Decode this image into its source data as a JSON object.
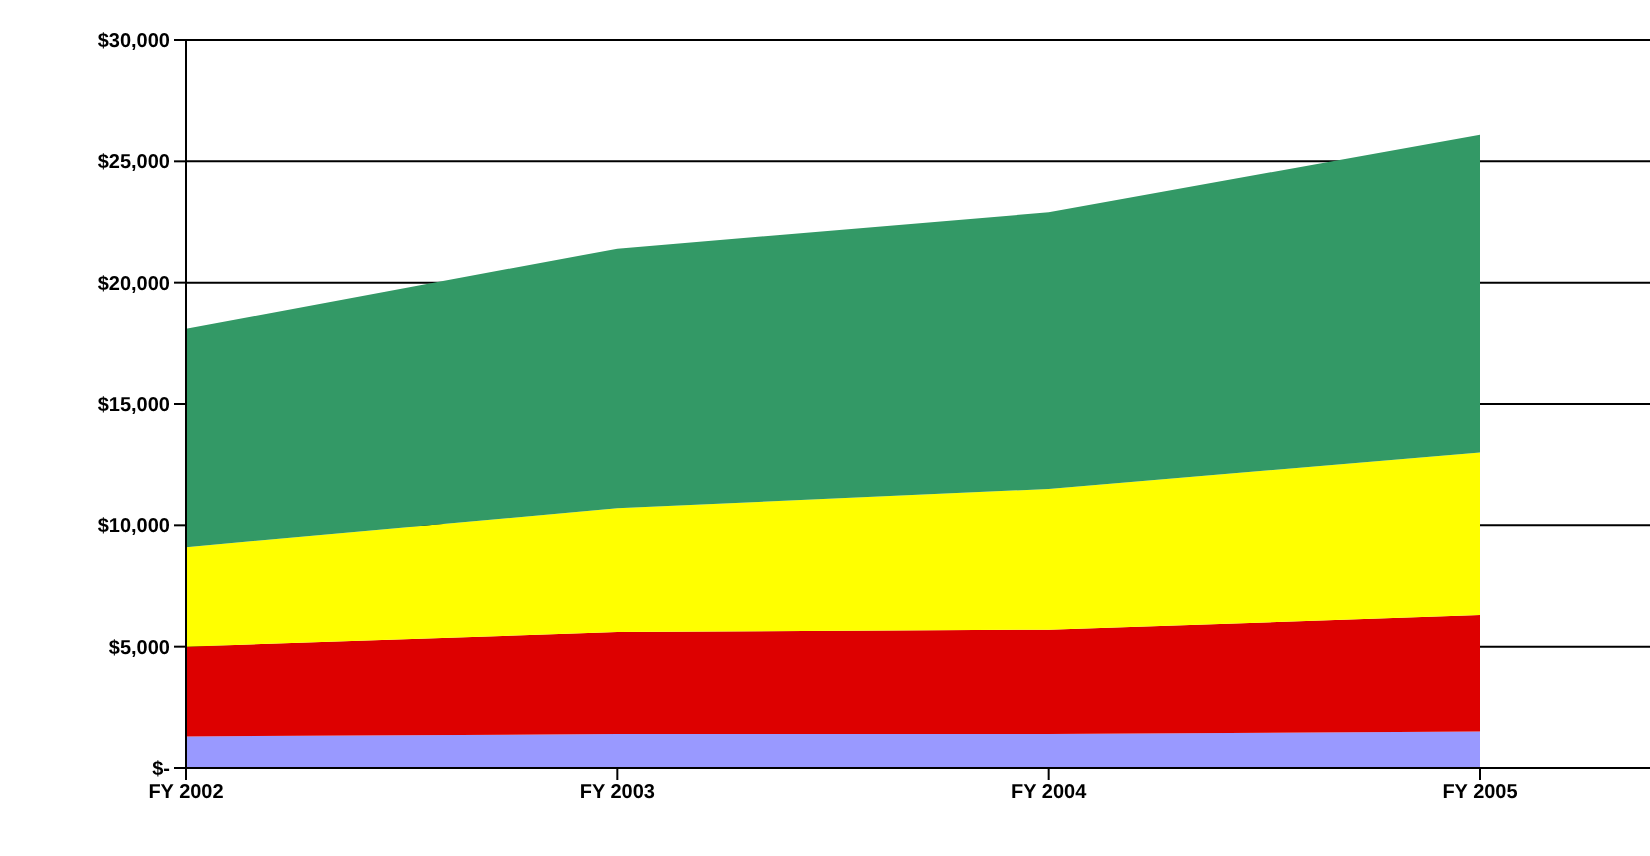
{
  "chart_data": {
    "type": "area",
    "stacked": true,
    "categories": [
      "FY 2002",
      "FY 2003",
      "FY 2004",
      "FY 2005"
    ],
    "series": [
      {
        "color": "#9999ff",
        "values": [
          1300,
          1400,
          1400,
          1500
        ]
      },
      {
        "color": "#dd0000",
        "values": [
          3700,
          4200,
          4300,
          4800
        ]
      },
      {
        "color": "#ffff00",
        "values": [
          4100,
          5100,
          5800,
          6700
        ]
      },
      {
        "color": "#339966",
        "values": [
          9000,
          10700,
          11400,
          13100
        ]
      }
    ],
    "ylim": [
      0,
      30000
    ],
    "yticks": [
      {
        "value": 0,
        "label": "$-"
      },
      {
        "value": 5000,
        "label": "$5,000"
      },
      {
        "value": 10000,
        "label": "$10,000"
      },
      {
        "value": 15000,
        "label": "$15,000"
      },
      {
        "value": 20000,
        "label": "$20,000"
      },
      {
        "value": 25000,
        "label": "$25,000"
      },
      {
        "value": 30000,
        "label": "$30,000"
      }
    ],
    "grid": "y"
  }
}
